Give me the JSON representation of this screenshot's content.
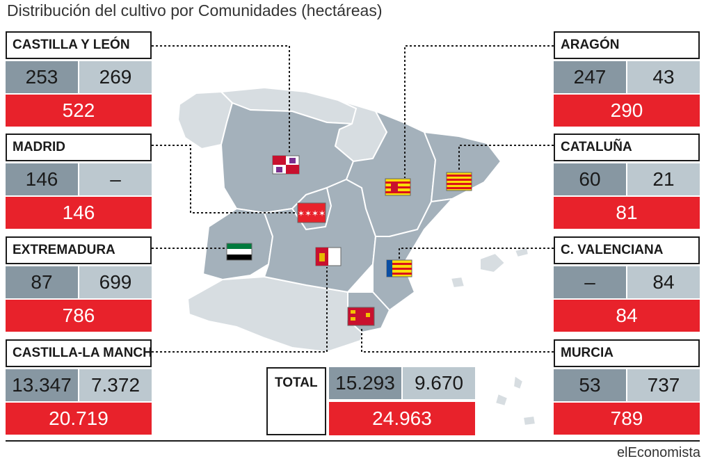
{
  "title": "Distribución del cultivo por Comunidades (hectáreas)",
  "brand": "elEconomista",
  "colors": {
    "value1": "#8797a2",
    "value2": "#bcc8cf",
    "total": "#e8222b",
    "region_highlight": "#a4b1bb",
    "region_other": "#d7dde1"
  },
  "chart_data": {
    "type": "table",
    "title": "Distribución del cultivo por Comunidades (hectáreas)",
    "columns": [
      "value_1",
      "value_2",
      "total"
    ],
    "regions": [
      {
        "name": "CASTILLA Y LEÓN",
        "v1": "253",
        "v2": "269",
        "total": "522"
      },
      {
        "name": "MADRID",
        "v1": "146",
        "v2": "–",
        "total": "146"
      },
      {
        "name": "EXTREMADURA",
        "v1": "87",
        "v2": "699",
        "total": "786"
      },
      {
        "name": "CASTILLA-LA MANCHA",
        "v1": "13.347",
        "v2": "7.372",
        "total": "20.719"
      },
      {
        "name": "ARAGÓN",
        "v1": "247",
        "v2": "43",
        "total": "290"
      },
      {
        "name": "CATALUÑA",
        "v1": "60",
        "v2": "21",
        "total": "81"
      },
      {
        "name": "C. VALENCIANA",
        "v1": "–",
        "v2": "84",
        "total": "84"
      },
      {
        "name": "MURCIA",
        "v1": "53",
        "v2": "737",
        "total": "789"
      }
    ],
    "grand_total": {
      "label": "TOTAL",
      "v1": "15.293",
      "v2": "9.670",
      "total": "24.963"
    }
  }
}
